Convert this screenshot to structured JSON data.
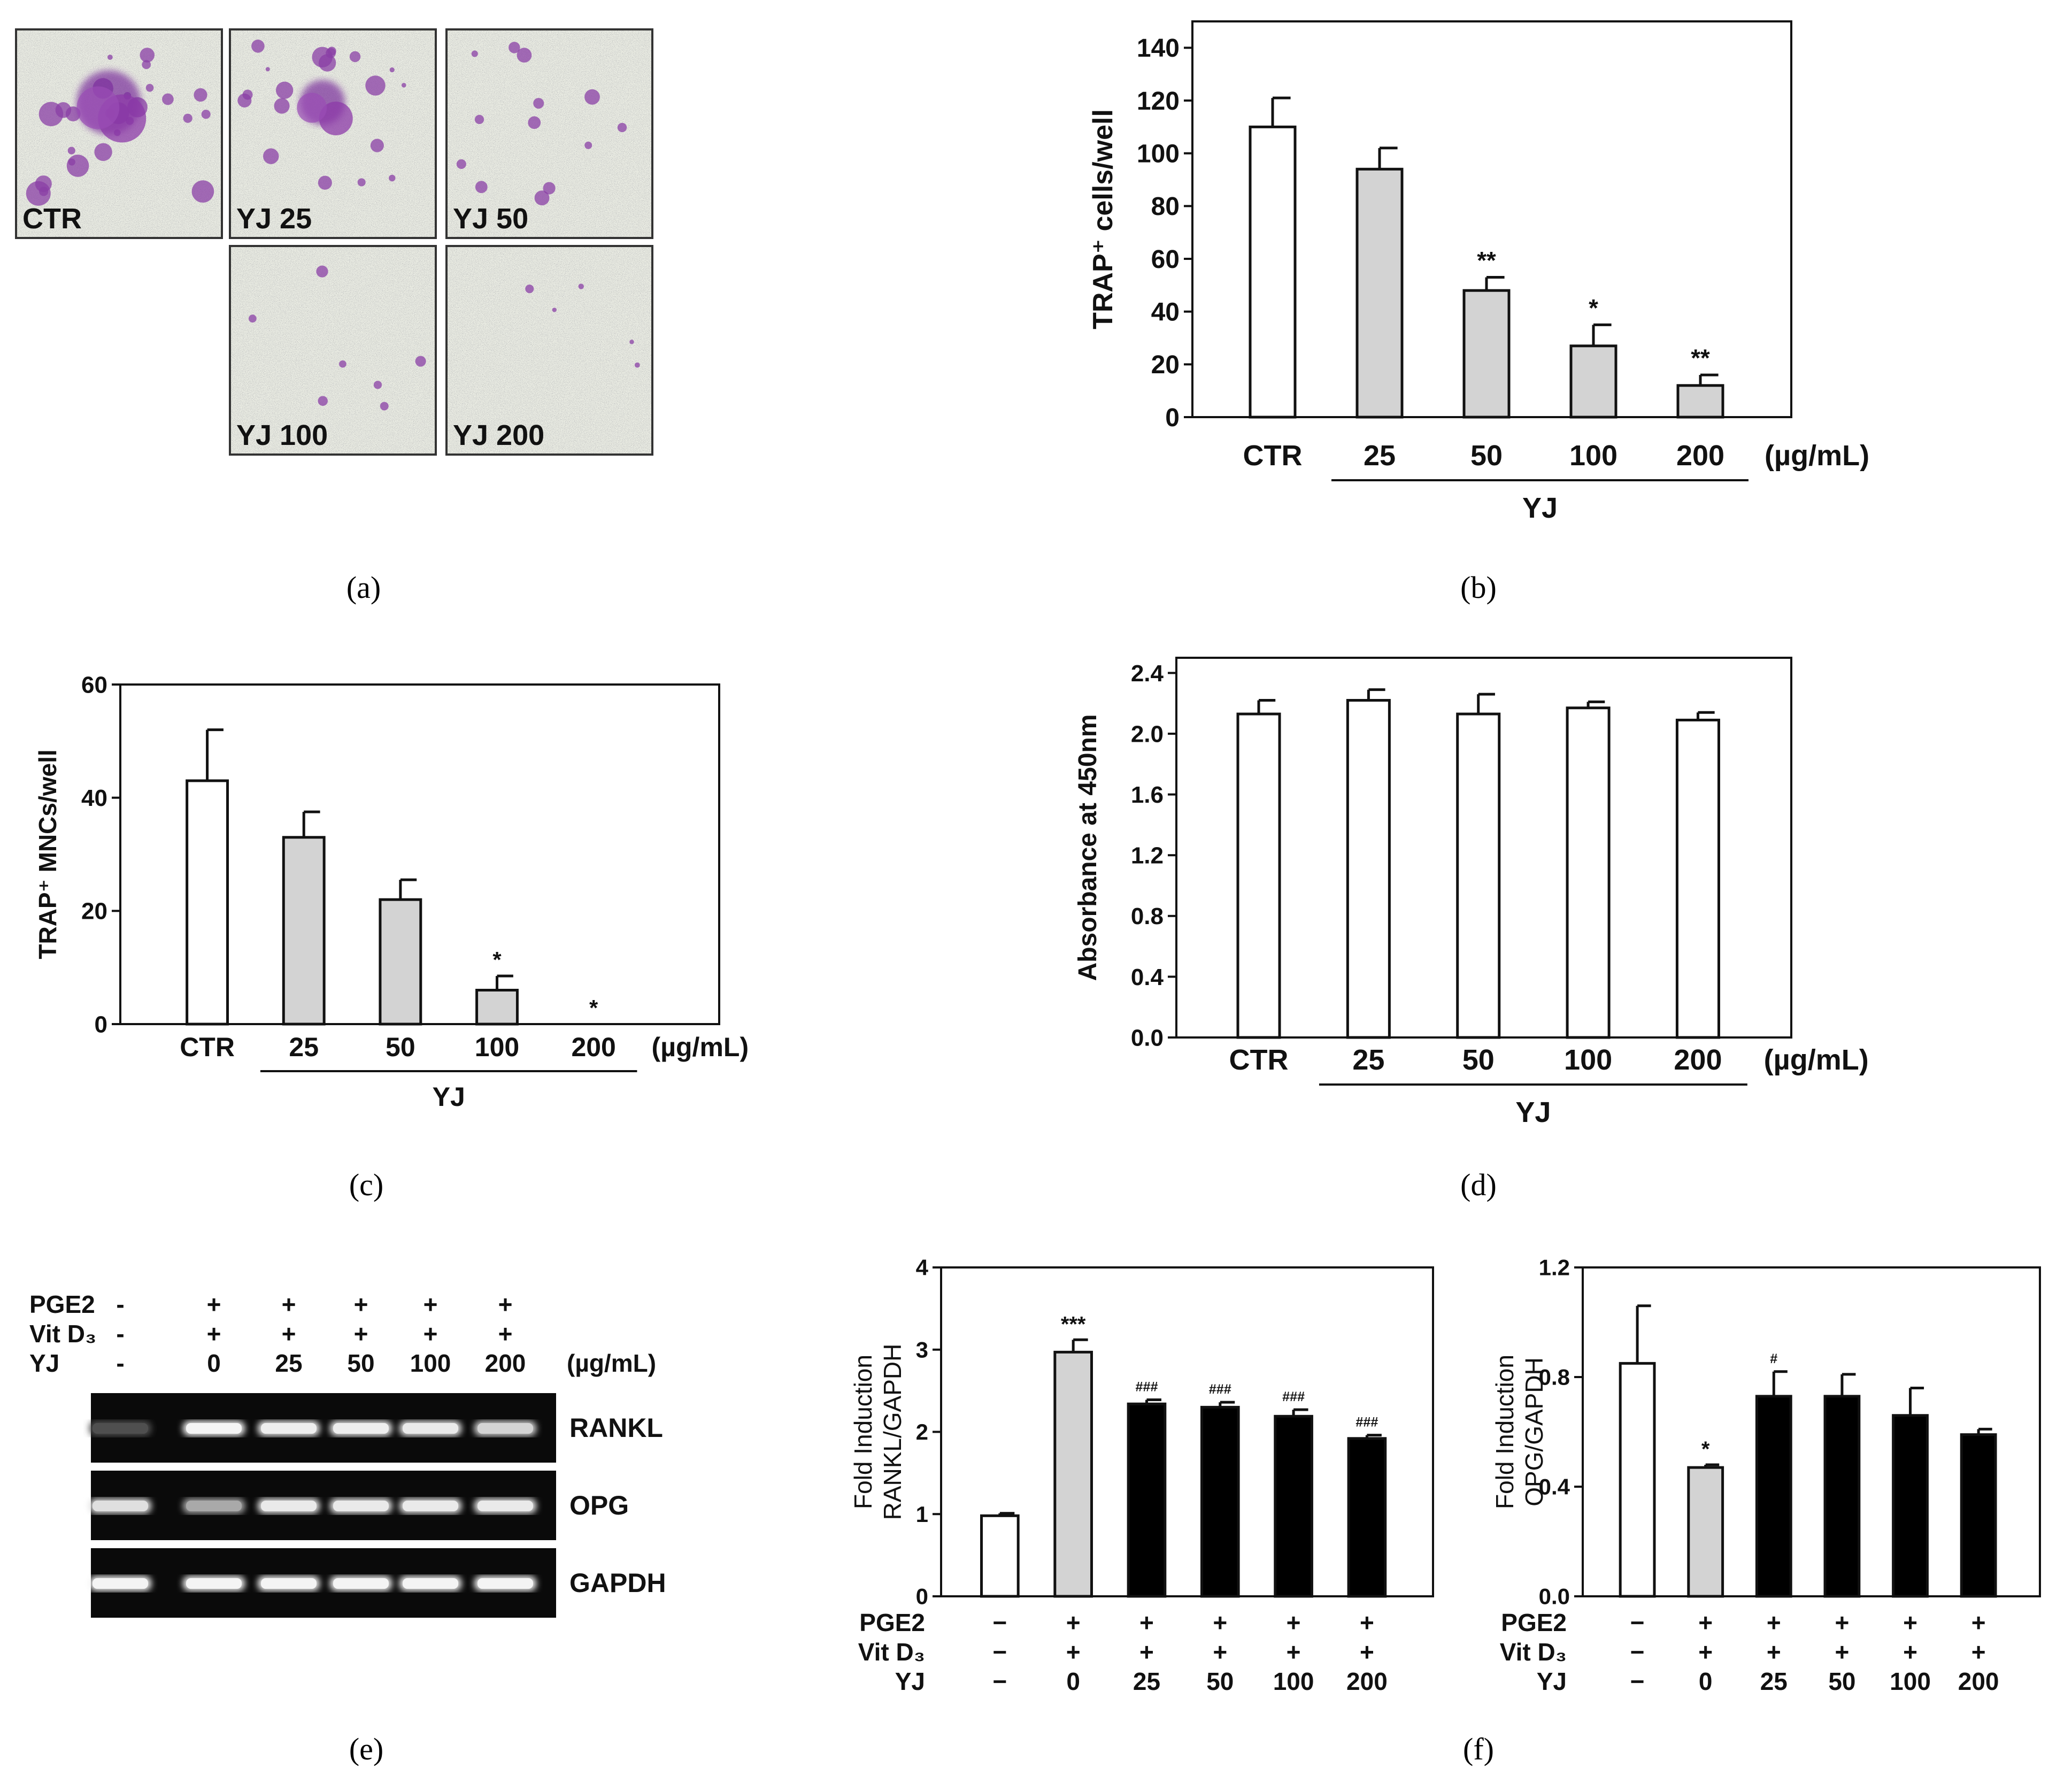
{
  "panel_labels": {
    "a": "(a)",
    "b": "(b)",
    "c": "(c)",
    "d": "(d)",
    "e": "(e)",
    "f": "(f)"
  },
  "micrographs": [
    {
      "label": "CTR",
      "stain": 1.0
    },
    {
      "label": "YJ 25",
      "stain": 0.7
    },
    {
      "label": "YJ 50",
      "stain": 0.4
    },
    {
      "label": "YJ 100",
      "stain": 0.12
    },
    {
      "label": "YJ 200",
      "stain": 0.04
    }
  ],
  "chart_data": [
    {
      "id": "b",
      "type": "bar",
      "ylabel": "TRAP⁺ cells/well",
      "categories": [
        "CTR",
        "25",
        "50",
        "100",
        "200"
      ],
      "unit": "(µg/mL)",
      "group_label": "YJ",
      "values": [
        110,
        94,
        48,
        27,
        12
      ],
      "errors": [
        11,
        8,
        5,
        8,
        4
      ],
      "annotations": [
        "",
        "",
        "**",
        "*",
        "**"
      ],
      "bar_colors": [
        "#ffffff",
        "#d3d3d3",
        "#d3d3d3",
        "#d3d3d3",
        "#d3d3d3"
      ],
      "ylim": [
        0,
        150
      ],
      "yticks": [
        "0",
        "20",
        "40",
        "60",
        "80",
        "100",
        "120",
        "140"
      ]
    },
    {
      "id": "c",
      "type": "bar",
      "ylabel": "TRAP⁺ MNCs/well",
      "categories": [
        "CTR",
        "25",
        "50",
        "100",
        "200"
      ],
      "unit": "(µg/mL)",
      "group_label": "YJ",
      "values": [
        43,
        33,
        22,
        6,
        0
      ],
      "errors": [
        9,
        4.5,
        3.5,
        2.5,
        0
      ],
      "annotations": [
        "",
        "",
        "",
        "*",
        "*"
      ],
      "bar_colors": [
        "#ffffff",
        "#d3d3d3",
        "#d3d3d3",
        "#d3d3d3",
        "#d3d3d3"
      ],
      "ylim": [
        0,
        60
      ],
      "yticks": [
        "0",
        "20",
        "40",
        "60"
      ]
    },
    {
      "id": "d",
      "type": "bar",
      "ylabel": "Absorbance at 450nm",
      "categories": [
        "CTR",
        "25",
        "50",
        "100",
        "200"
      ],
      "unit": "(µg/mL)",
      "group_label": "YJ",
      "values": [
        2.13,
        2.22,
        2.13,
        2.17,
        2.09
      ],
      "errors": [
        0.09,
        0.07,
        0.13,
        0.04,
        0.05
      ],
      "annotations": [
        "",
        "",
        "",
        "",
        ""
      ],
      "bar_colors": [
        "#ffffff",
        "#ffffff",
        "#ffffff",
        "#ffffff",
        "#ffffff"
      ],
      "ylim": [
        0,
        2.5
      ],
      "yticks": [
        "0.0",
        "0.4",
        "0.8",
        "1.2",
        "1.6",
        "2.0",
        "2.4"
      ]
    },
    {
      "id": "f1",
      "type": "bar",
      "ylabel_lines": [
        "Fold Induction",
        "RANKL/GAPDH"
      ],
      "categories": [
        "−",
        "0",
        "25",
        "50",
        "100",
        "200"
      ],
      "values": [
        0.98,
        2.97,
        2.34,
        2.3,
        2.19,
        1.92
      ],
      "errors": [
        0.03,
        0.15,
        0.05,
        0.06,
        0.08,
        0.04
      ],
      "annotations": [
        "",
        "***",
        "###",
        "###",
        "###",
        "###"
      ],
      "bar_colors": [
        "#ffffff",
        "#d3d3d3",
        "#000000",
        "#000000",
        "#000000",
        "#000000"
      ],
      "ylim": [
        0,
        4
      ],
      "yticks": [
        "0",
        "1",
        "2",
        "3",
        "4"
      ],
      "row_labels": [
        "PGE2",
        "Vit D₃",
        "YJ"
      ],
      "rows": [
        [
          "−",
          "+",
          "+",
          "+",
          "+",
          "+"
        ],
        [
          "−",
          "+",
          "+",
          "+",
          "+",
          "+"
        ],
        [
          "−",
          "0",
          "25",
          "50",
          "100",
          "200"
        ]
      ]
    },
    {
      "id": "f2",
      "type": "bar",
      "ylabel_lines": [
        "Fold Induction",
        "OPG/GAPDH"
      ],
      "categories": [
        "−",
        "0",
        "25",
        "50",
        "100",
        "200"
      ],
      "values": [
        0.85,
        0.47,
        0.73,
        0.73,
        0.66,
        0.59
      ],
      "errors": [
        0.21,
        0.01,
        0.09,
        0.08,
        0.1,
        0.02
      ],
      "annotations": [
        "",
        "*",
        "#",
        "",
        "",
        ""
      ],
      "bar_colors": [
        "#ffffff",
        "#d3d3d3",
        "#000000",
        "#000000",
        "#000000",
        "#000000"
      ],
      "ylim": [
        0,
        1.2
      ],
      "yticks": [
        "0.0",
        "0.4",
        "0.8",
        "1.2"
      ],
      "row_labels": [
        "PGE2",
        "Vit D₃",
        "YJ"
      ],
      "rows": [
        [
          "−",
          "+",
          "+",
          "+",
          "+",
          "+"
        ],
        [
          "−",
          "+",
          "+",
          "+",
          "+",
          "+"
        ],
        [
          "−",
          "0",
          "25",
          "50",
          "100",
          "200"
        ]
      ]
    }
  ],
  "gel": {
    "row_labels": [
      "PGE2",
      "Vit D₃",
      "YJ"
    ],
    "rows": [
      [
        "-",
        "+",
        "+",
        "+",
        "+",
        "+"
      ],
      [
        "-",
        "+",
        "+",
        "+",
        "+",
        "+"
      ],
      [
        "-",
        "0",
        "25",
        "50",
        "100",
        "200"
      ]
    ],
    "unit": "(µg/mL)",
    "bands": [
      {
        "name": "RANKL",
        "intensity": [
          0.18,
          0.95,
          0.92,
          0.92,
          0.9,
          0.8
        ]
      },
      {
        "name": "OPG",
        "intensity": [
          0.85,
          0.6,
          0.9,
          0.9,
          0.9,
          0.9
        ]
      },
      {
        "name": "GAPDH",
        "intensity": [
          0.95,
          0.95,
          0.95,
          0.95,
          0.95,
          0.95
        ]
      }
    ]
  }
}
